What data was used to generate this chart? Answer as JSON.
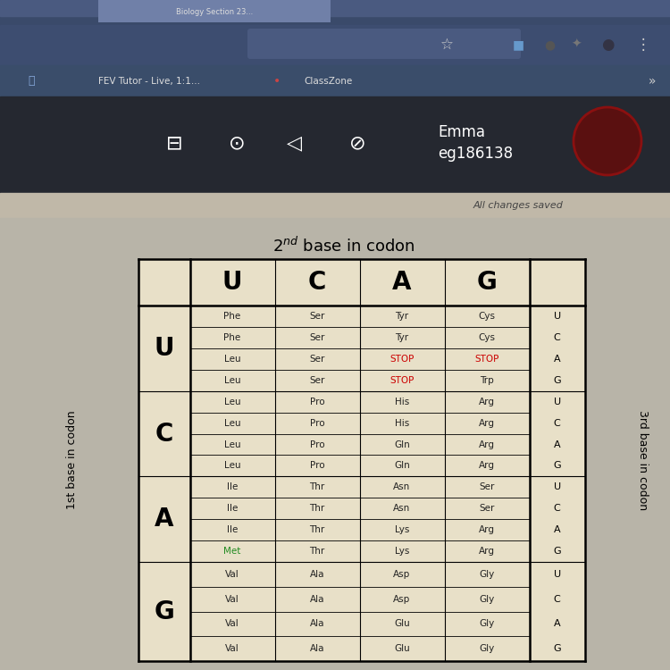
{
  "title": "2nd base in codon",
  "superscript_title": "2",
  "col_headers": [
    "U",
    "C",
    "A",
    "G"
  ],
  "row_headers": [
    "U",
    "C",
    "A",
    "G"
  ],
  "third_base_label": "3rd base in codon",
  "first_base_label": "1st base in codon",
  "cells": [
    [
      [
        "Phe",
        "Phe",
        "Leu",
        "Leu"
      ],
      [
        "Ser",
        "Ser",
        "Ser",
        "Ser"
      ],
      [
        "Tyr",
        "Tyr",
        "STOP",
        "STOP"
      ],
      [
        "Cys",
        "Cys",
        "STOP",
        "Trp"
      ]
    ],
    [
      [
        "Leu",
        "Leu",
        "Leu",
        "Leu"
      ],
      [
        "Pro",
        "Pro",
        "Pro",
        "Pro"
      ],
      [
        "His",
        "His",
        "Gln",
        "Gln"
      ],
      [
        "Arg",
        "Arg",
        "Arg",
        "Arg"
      ]
    ],
    [
      [
        "Ile",
        "Ile",
        "Ile",
        "Met"
      ],
      [
        "Thr",
        "Thr",
        "Thr",
        "Thr"
      ],
      [
        "Asn",
        "Asn",
        "Lys",
        "Lys"
      ],
      [
        "Ser",
        "Ser",
        "Arg",
        "Arg"
      ]
    ],
    [
      [
        "Val",
        "Val",
        "Val",
        "Val"
      ],
      [
        "Ala",
        "Ala",
        "Ala",
        "Ala"
      ],
      [
        "Asp",
        "Asp",
        "Glu",
        "Glu"
      ],
      [
        "Gly",
        "Gly",
        "Gly",
        "Gly"
      ]
    ]
  ],
  "met_color": "#228B22",
  "stop_color": "#cc0000",
  "normal_color": "#222222",
  "cell_bg": "#e8e0c8",
  "tab_bar_color": "#4a6090",
  "tab_active_color": "#8090b0",
  "url_bar_color": "#3a5080",
  "bookmark_bar_color": "#353d50",
  "toolbar_color": "#2a3040",
  "content_bg": "#b8b0a0",
  "table_bg": "#e8e0c8",
  "browser_top_color": "#3a4a6a"
}
